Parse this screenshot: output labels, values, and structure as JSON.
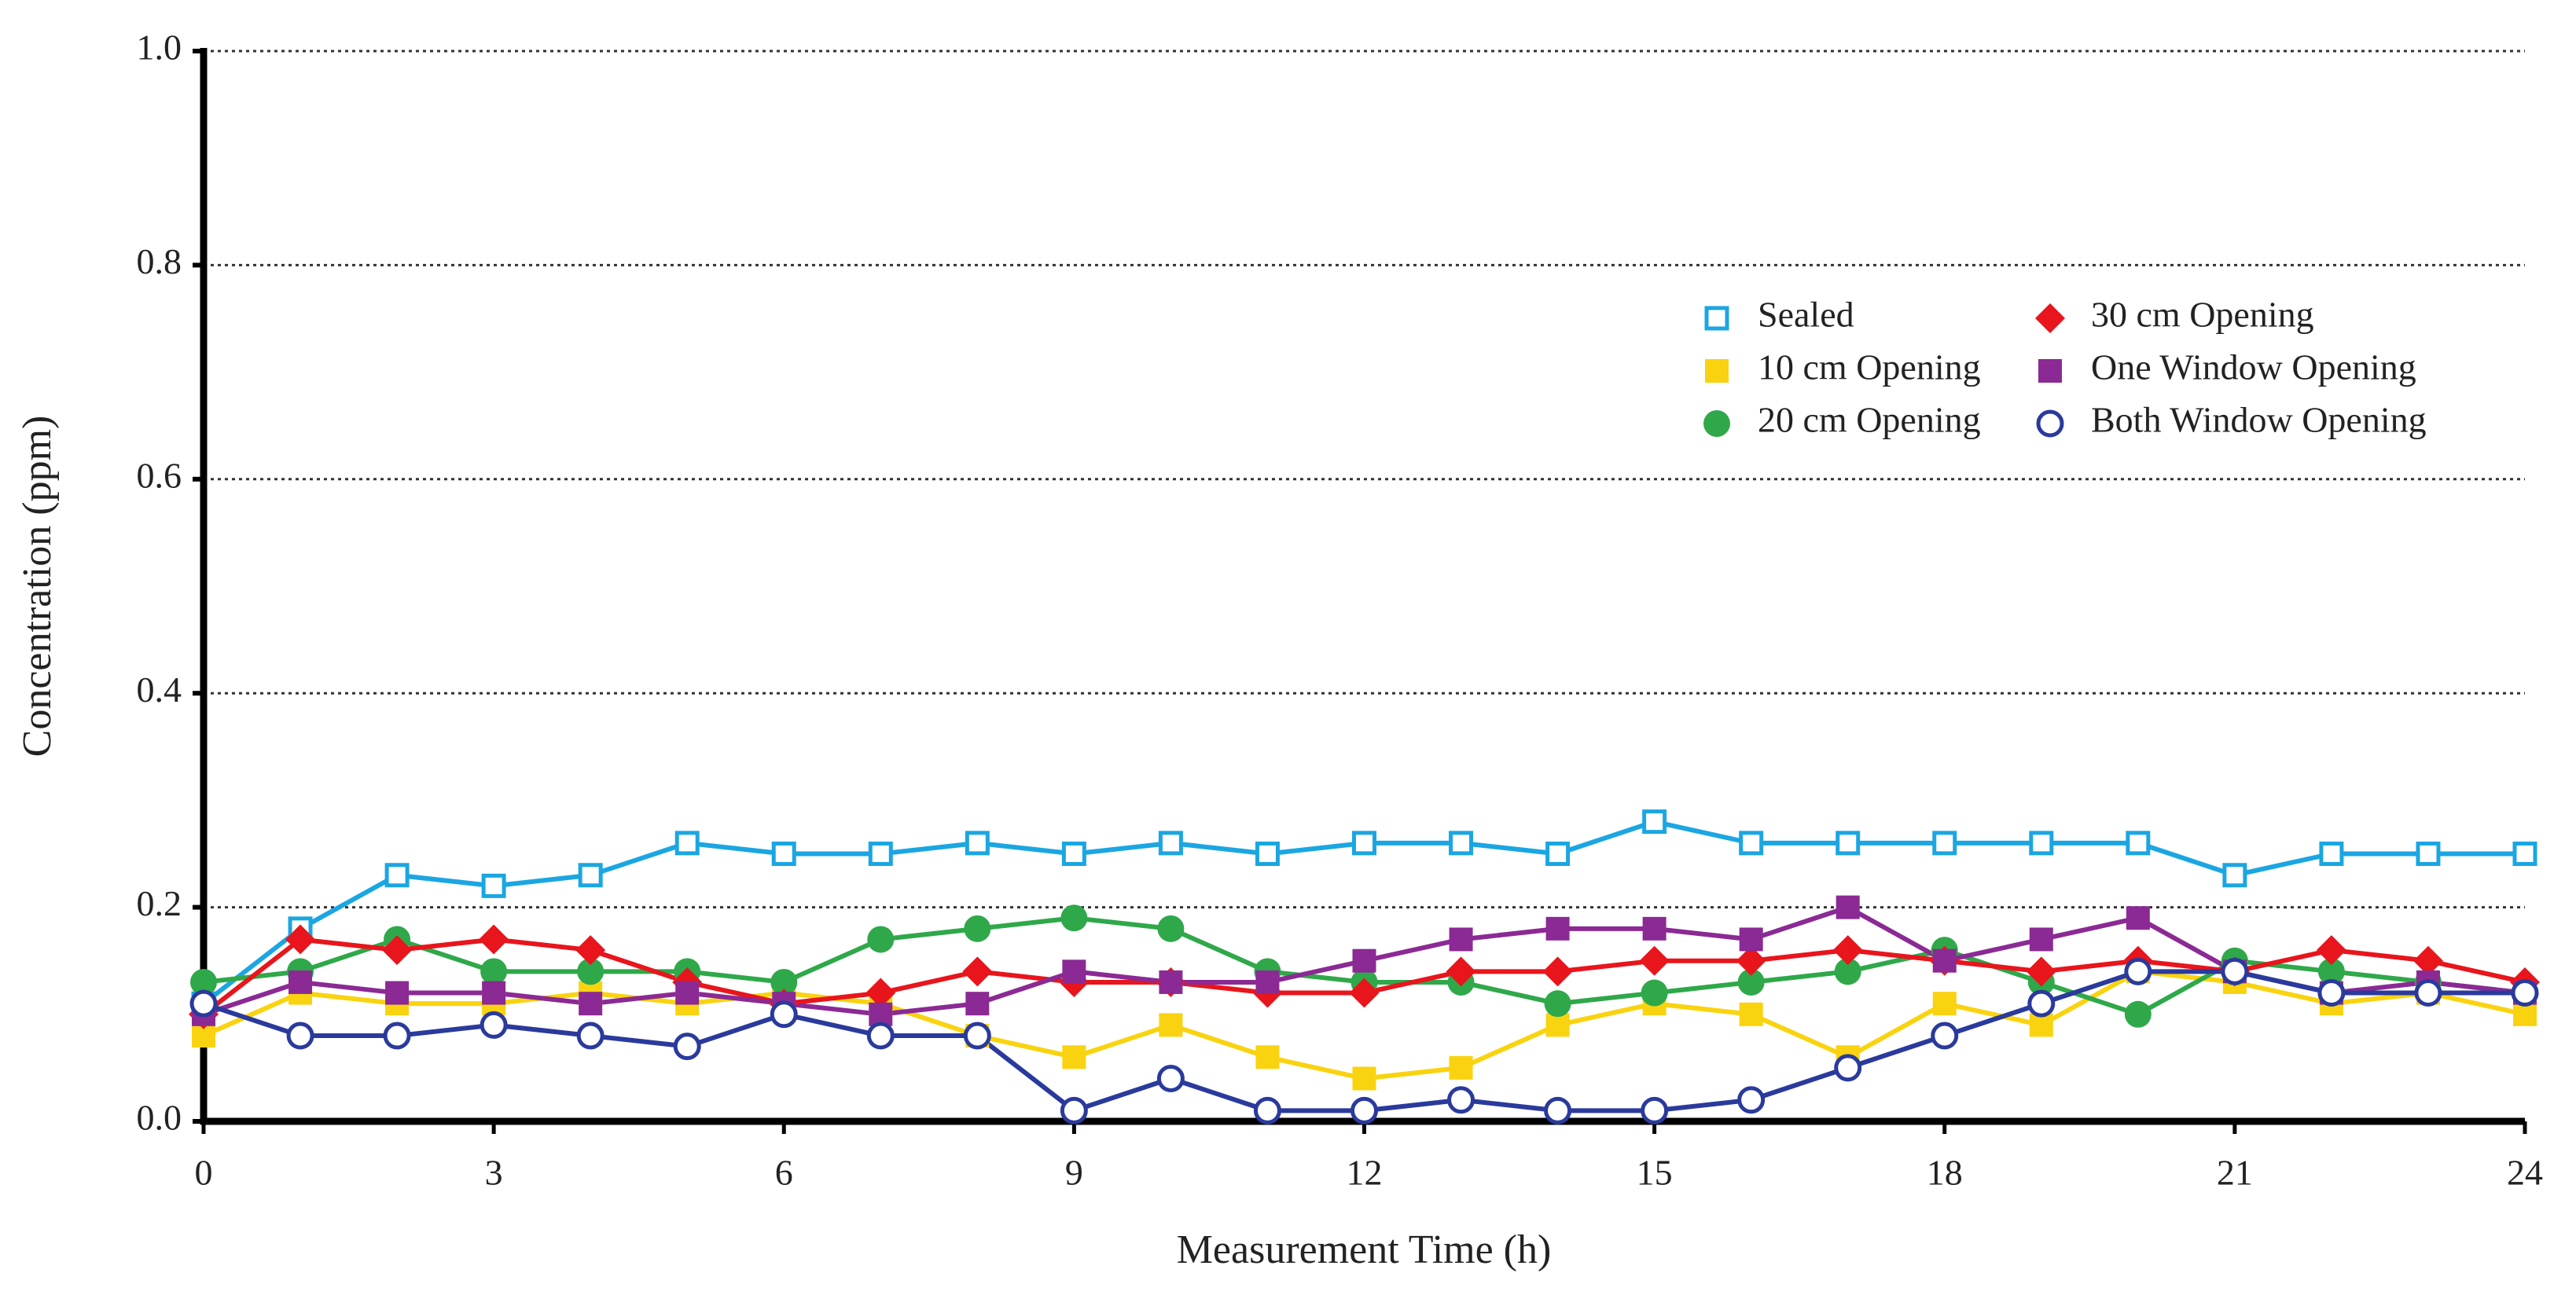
{
  "chart_data": {
    "type": "line",
    "xlabel": "Measurement Time (h)",
    "ylabel": "Concentration (ppm)",
    "x": [
      0,
      1,
      2,
      3,
      4,
      5,
      6,
      7,
      8,
      9,
      10,
      11,
      12,
      13,
      14,
      15,
      16,
      17,
      18,
      19,
      20,
      21,
      22,
      23,
      24
    ],
    "xlim": [
      0,
      24
    ],
    "xticks": [
      0,
      3,
      6,
      9,
      12,
      15,
      18,
      21,
      24
    ],
    "ylim": [
      0,
      1
    ],
    "yticks": [
      {
        "value": 0,
        "label": "0.0"
      },
      0.2,
      0.4,
      0.6,
      0.8,
      {
        "value": 1,
        "label": "1.0"
      }
    ],
    "grid": true,
    "legend": "upper right",
    "series": [
      {
        "name": "Sealed",
        "color": "#1ba6e2",
        "marker": "square-open",
        "values": [
          0.11,
          0.18,
          0.23,
          0.22,
          0.23,
          0.26,
          0.25,
          0.25,
          0.26,
          0.25,
          0.26,
          0.25,
          0.26,
          0.26,
          0.25,
          0.28,
          0.26,
          0.26,
          0.26,
          0.26,
          0.26,
          0.23,
          0.25,
          0.25,
          0.25
        ]
      },
      {
        "name": "10 cm Opening",
        "color": "#f9d30f",
        "marker": "square",
        "values": [
          0.08,
          0.12,
          0.11,
          0.11,
          0.12,
          0.11,
          0.12,
          0.11,
          0.08,
          0.06,
          0.09,
          0.06,
          0.04,
          0.05,
          0.09,
          0.11,
          0.1,
          0.06,
          0.11,
          0.09,
          0.14,
          0.13,
          0.11,
          0.12,
          0.1
        ]
      },
      {
        "name": "20 cm Opening",
        "color": "#2fa84a",
        "marker": "circle",
        "values": [
          0.13,
          0.14,
          0.17,
          0.14,
          0.14,
          0.14,
          0.13,
          0.17,
          0.18,
          0.19,
          0.18,
          0.14,
          0.13,
          0.13,
          0.11,
          0.12,
          0.13,
          0.14,
          0.16,
          0.13,
          0.1,
          0.15,
          0.14,
          0.13,
          0.12
        ]
      },
      {
        "name": "30 cm Opening",
        "color": "#e8151c",
        "marker": "diamond",
        "values": [
          0.1,
          0.17,
          0.16,
          0.17,
          0.16,
          0.13,
          0.11,
          0.12,
          0.14,
          0.13,
          0.13,
          0.12,
          0.12,
          0.14,
          0.14,
          0.15,
          0.15,
          0.16,
          0.15,
          0.14,
          0.15,
          0.14,
          0.16,
          0.15,
          0.13
        ]
      },
      {
        "name": "One Window Opening",
        "color": "#8b2a94",
        "marker": "square",
        "values": [
          0.1,
          0.13,
          0.12,
          0.12,
          0.11,
          0.12,
          0.11,
          0.1,
          0.11,
          0.14,
          0.13,
          0.13,
          0.15,
          0.17,
          0.18,
          0.18,
          0.17,
          0.2,
          0.15,
          0.17,
          0.19,
          0.14,
          0.12,
          0.13,
          0.12
        ]
      },
      {
        "name": "Both Window Opening",
        "color": "#2a3a9c",
        "marker": "circle-open",
        "values": [
          0.11,
          0.08,
          0.08,
          0.09,
          0.08,
          0.07,
          0.1,
          0.08,
          0.08,
          0.01,
          0.04,
          0.01,
          0.01,
          0.02,
          0.01,
          0.01,
          0.02,
          0.05,
          0.08,
          0.11,
          0.14,
          0.14,
          0.12,
          0.12,
          0.12
        ]
      }
    ]
  }
}
